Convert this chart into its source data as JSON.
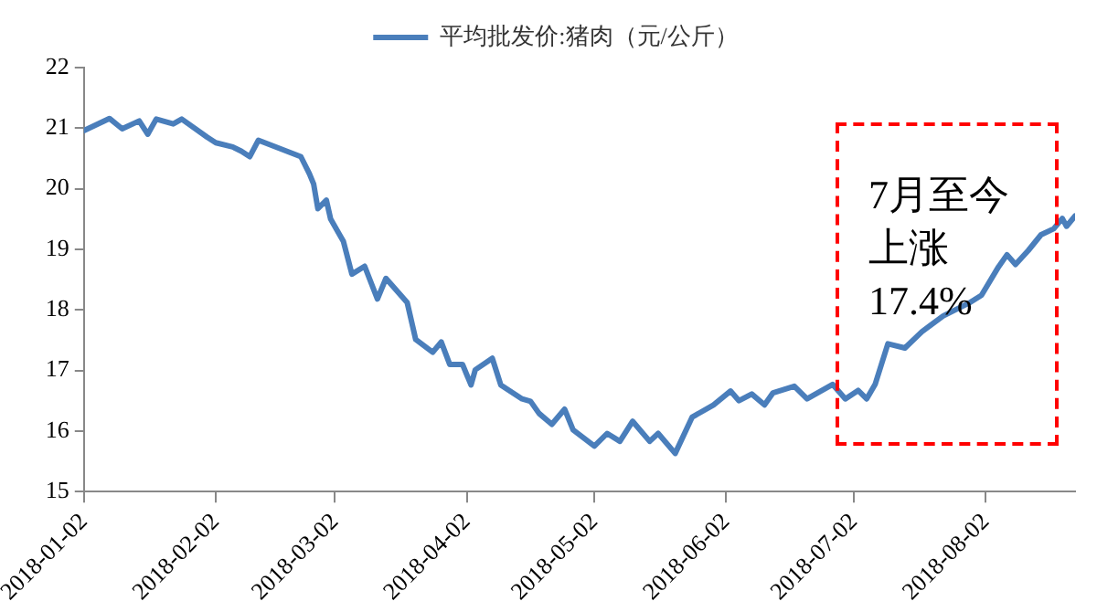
{
  "chart_data": {
    "type": "line",
    "legend": "top",
    "grid": false,
    "marker": "none",
    "line_style": "solid",
    "x": [
      "2018-01-02",
      "2018-01-08",
      "2018-01-11",
      "2018-01-15",
      "2018-01-17",
      "2018-01-19",
      "2018-01-23",
      "2018-01-25",
      "2018-01-31",
      "2018-02-02",
      "2018-02-06",
      "2018-02-08",
      "2018-02-10",
      "2018-02-12",
      "2018-02-22",
      "2018-02-24",
      "2018-02-25",
      "2018-02-26",
      "2018-02-28",
      "2018-03-01",
      "2018-03-04",
      "2018-03-06",
      "2018-03-09",
      "2018-03-12",
      "2018-03-14",
      "2018-03-19",
      "2018-03-21",
      "2018-03-25",
      "2018-03-27",
      "2018-03-29",
      "2018-04-01",
      "2018-04-03",
      "2018-04-04",
      "2018-04-08",
      "2018-04-10",
      "2018-04-15",
      "2018-04-17",
      "2018-04-19",
      "2018-04-22",
      "2018-04-25",
      "2018-04-27",
      "2018-05-02",
      "2018-05-05",
      "2018-05-08",
      "2018-05-11",
      "2018-05-15",
      "2018-05-17",
      "2018-05-21",
      "2018-05-25",
      "2018-05-30",
      "2018-06-03",
      "2018-06-05",
      "2018-06-08",
      "2018-06-11",
      "2018-06-13",
      "2018-06-18",
      "2018-06-21",
      "2018-06-27",
      "2018-06-30",
      "2018-07-03",
      "2018-07-05",
      "2018-07-07",
      "2018-07-10",
      "2018-07-14",
      "2018-07-18",
      "2018-07-23",
      "2018-07-29",
      "2018-08-01",
      "2018-08-05",
      "2018-08-07",
      "2018-08-09",
      "2018-08-12",
      "2018-08-15",
      "2018-08-18",
      "2018-08-20",
      "2018-08-21",
      "2018-08-23"
    ],
    "series": [
      {
        "name": "平均批发价:猪肉（元/公斤）",
        "color": "#4a7ebb",
        "values": [
          20.96,
          21.16,
          20.99,
          21.12,
          20.9,
          21.15,
          21.07,
          21.15,
          20.85,
          20.76,
          20.69,
          20.62,
          20.53,
          20.8,
          20.53,
          20.25,
          20.08,
          19.67,
          19.81,
          19.5,
          19.13,
          18.59,
          18.72,
          18.18,
          18.52,
          18.12,
          17.51,
          17.3,
          17.47,
          17.1,
          17.1,
          16.76,
          17.01,
          17.2,
          16.76,
          16.53,
          16.49,
          16.29,
          16.11,
          16.36,
          16.02,
          15.75,
          15.96,
          15.83,
          16.16,
          15.83,
          15.96,
          15.63,
          16.23,
          16.43,
          16.66,
          16.5,
          16.61,
          16.43,
          16.63,
          16.74,
          16.53,
          16.77,
          16.53,
          16.67,
          16.53,
          16.77,
          17.44,
          17.37,
          17.64,
          17.9,
          18.11,
          18.24,
          18.71,
          18.91,
          18.75,
          18.98,
          19.24,
          19.34,
          19.51,
          19.38,
          19.55
        ]
      }
    ],
    "xlim": [
      "2018-01-02",
      "2018-08-23"
    ],
    "xticks": [
      "2018-01-02",
      "2018-02-02",
      "2018-03-02",
      "2018-04-02",
      "2018-05-02",
      "2018-06-02",
      "2018-07-02",
      "2018-08-02"
    ],
    "ylim": [
      15,
      22
    ],
    "yticks": [
      15,
      16,
      17,
      18,
      19,
      20,
      21,
      22
    ],
    "annotations": [
      "7月至今",
      "上涨",
      "17.4%"
    ]
  }
}
